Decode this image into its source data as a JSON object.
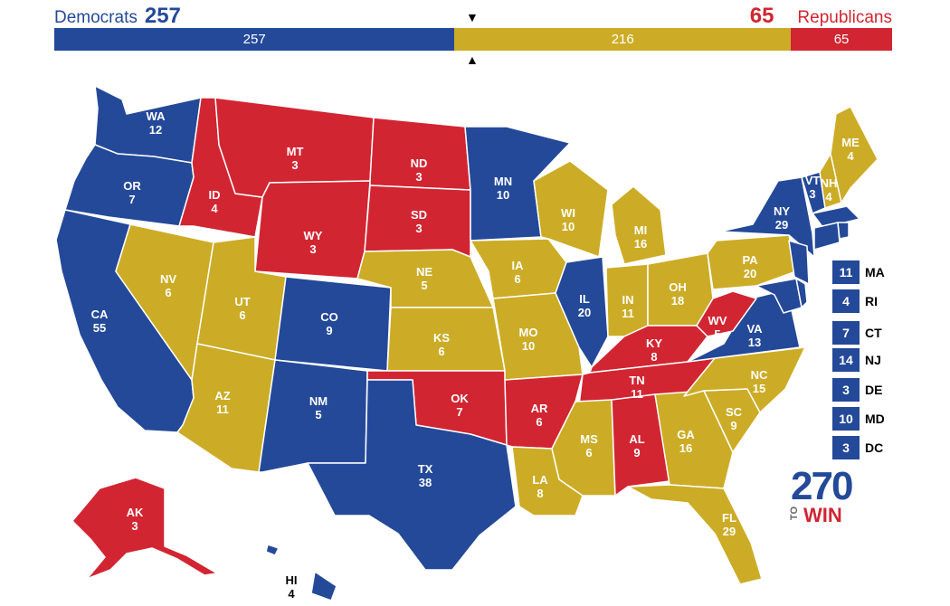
{
  "header": {
    "dem_label": "Democrats",
    "dem_total": "257",
    "rep_label": "Republicans",
    "rep_total": "65"
  },
  "bar": {
    "dem": {
      "value": 257,
      "label": "257",
      "color": "#244999"
    },
    "tossup": {
      "value": 216,
      "label": "216",
      "color": "#ccac26"
    },
    "rep": {
      "value": 65,
      "label": "65",
      "color": "#d22532"
    }
  },
  "markers": {
    "top": "▼",
    "bottom": "▲"
  },
  "colors": {
    "D": "#244999",
    "T": "#ccac26",
    "R": "#d22532"
  },
  "states": {
    "WA": {
      "code": "WA",
      "ev": "12",
      "party": "D"
    },
    "OR": {
      "code": "OR",
      "ev": "7",
      "party": "D"
    },
    "CA": {
      "code": "CA",
      "ev": "55",
      "party": "D"
    },
    "ID": {
      "code": "ID",
      "ev": "4",
      "party": "R"
    },
    "NV": {
      "code": "NV",
      "ev": "6",
      "party": "T"
    },
    "MT": {
      "code": "MT",
      "ev": "3",
      "party": "R"
    },
    "WY": {
      "code": "WY",
      "ev": "3",
      "party": "R"
    },
    "UT": {
      "code": "UT",
      "ev": "6",
      "party": "T"
    },
    "AZ": {
      "code": "AZ",
      "ev": "11",
      "party": "T"
    },
    "CO": {
      "code": "CO",
      "ev": "9",
      "party": "D"
    },
    "NM": {
      "code": "NM",
      "ev": "5",
      "party": "D"
    },
    "ND": {
      "code": "ND",
      "ev": "3",
      "party": "R"
    },
    "SD": {
      "code": "SD",
      "ev": "3",
      "party": "R"
    },
    "NE": {
      "code": "NE",
      "ev": "5",
      "party": "T"
    },
    "KS": {
      "code": "KS",
      "ev": "6",
      "party": "T"
    },
    "OK": {
      "code": "OK",
      "ev": "7",
      "party": "R"
    },
    "TX": {
      "code": "TX",
      "ev": "38",
      "party": "D"
    },
    "MN": {
      "code": "MN",
      "ev": "10",
      "party": "D"
    },
    "IA": {
      "code": "IA",
      "ev": "6",
      "party": "T"
    },
    "MO": {
      "code": "MO",
      "ev": "10",
      "party": "T"
    },
    "AR": {
      "code": "AR",
      "ev": "6",
      "party": "R"
    },
    "LA": {
      "code": "LA",
      "ev": "8",
      "party": "T"
    },
    "WI": {
      "code": "WI",
      "ev": "10",
      "party": "T"
    },
    "IL": {
      "code": "IL",
      "ev": "20",
      "party": "D"
    },
    "MI": {
      "code": "MI",
      "ev": "16",
      "party": "T"
    },
    "IN": {
      "code": "IN",
      "ev": "11",
      "party": "T"
    },
    "OH": {
      "code": "OH",
      "ev": "18",
      "party": "T"
    },
    "KY": {
      "code": "KY",
      "ev": "8",
      "party": "R"
    },
    "TN": {
      "code": "TN",
      "ev": "11",
      "party": "R"
    },
    "MS": {
      "code": "MS",
      "ev": "6",
      "party": "T"
    },
    "AL": {
      "code": "AL",
      "ev": "9",
      "party": "R"
    },
    "GA": {
      "code": "GA",
      "ev": "16",
      "party": "T"
    },
    "FL": {
      "code": "FL",
      "ev": "29",
      "party": "T"
    },
    "SC": {
      "code": "SC",
      "ev": "9",
      "party": "T"
    },
    "NC": {
      "code": "NC",
      "ev": "15",
      "party": "T"
    },
    "VA": {
      "code": "VA",
      "ev": "13",
      "party": "D"
    },
    "WV": {
      "code": "WV",
      "ev": "5",
      "party": "R"
    },
    "PA": {
      "code": "PA",
      "ev": "20",
      "party": "T"
    },
    "NY": {
      "code": "NY",
      "ev": "29",
      "party": "D"
    },
    "VT": {
      "code": "VT",
      "ev": "3",
      "party": "D"
    },
    "NH": {
      "code": "NH",
      "ev": "4",
      "party": "T"
    },
    "ME": {
      "code": "ME",
      "ev": "4",
      "party": "T"
    },
    "AK": {
      "code": "AK",
      "ev": "3",
      "party": "R"
    },
    "HI": {
      "code": "HI",
      "ev": "4",
      "party": "D"
    }
  },
  "small_states": [
    {
      "code": "MA",
      "ev": "11",
      "party": "D"
    },
    {
      "code": "RI",
      "ev": "4",
      "party": "D"
    },
    {
      "code": "CT",
      "ev": "7",
      "party": "D"
    },
    {
      "code": "NJ",
      "ev": "14",
      "party": "D"
    },
    {
      "code": "DE",
      "ev": "3",
      "party": "D"
    },
    {
      "code": "MD",
      "ev": "10",
      "party": "D"
    },
    {
      "code": "DC",
      "ev": "3",
      "party": "D"
    }
  ],
  "logo": {
    "number": "270",
    "to": "TO",
    "win": "WIN"
  }
}
